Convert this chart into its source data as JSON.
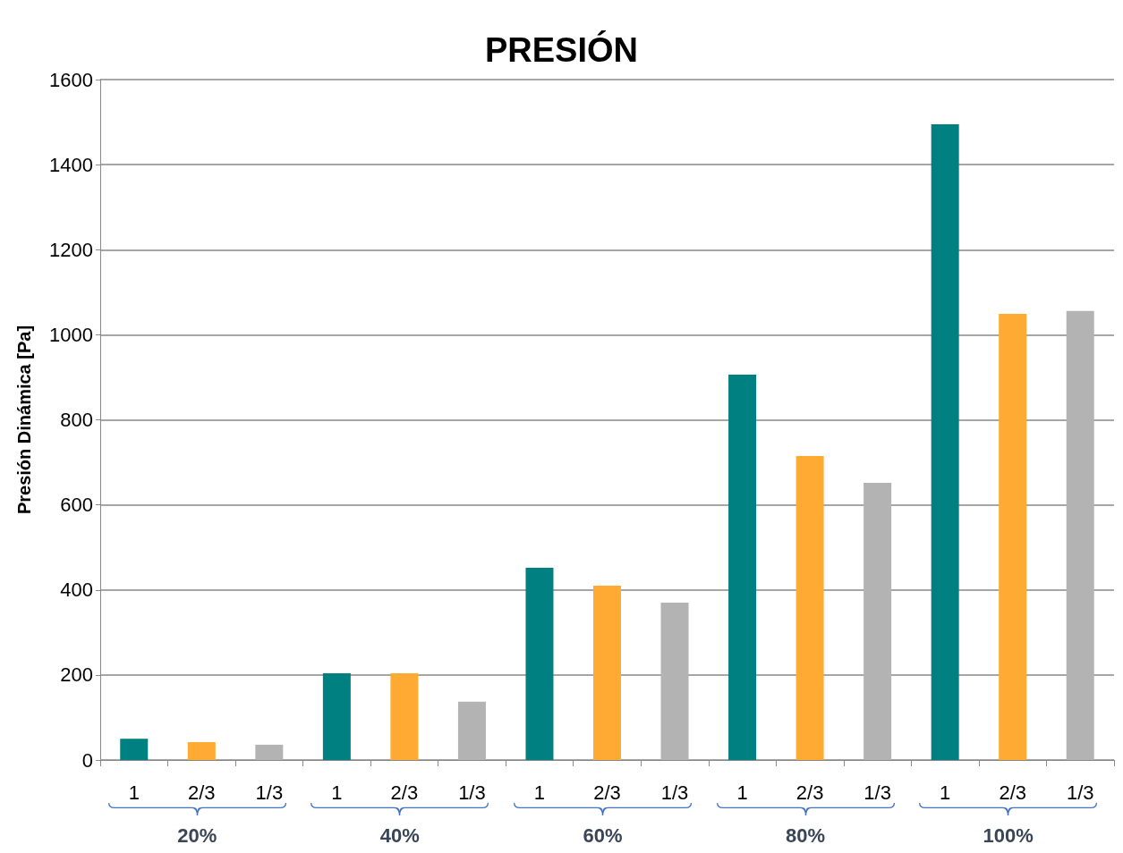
{
  "chart_data": {
    "type": "bar",
    "title": "PRESIÓN",
    "ylabel": "Presión Dinámica [Pa]",
    "categories": [
      "1",
      "2/3",
      "1/3",
      "1",
      "2/3",
      "1/3",
      "1",
      "2/3",
      "1/3",
      "1",
      "2/3",
      "1/3",
      "1",
      "2/3",
      "1/3"
    ],
    "values": [
      50,
      42,
      36,
      204,
      204,
      137,
      452,
      410,
      370,
      906,
      715,
      652,
      1495,
      1049,
      1056
    ],
    "colors": [
      "#008080",
      "#ffaa33",
      "#b3b3b3",
      "#008080",
      "#ffaa33",
      "#b3b3b3",
      "#008080",
      "#ffaa33",
      "#b3b3b3",
      "#008080",
      "#ffaa33",
      "#b3b3b3",
      "#008080",
      "#ffaa33",
      "#b3b3b3"
    ],
    "annotations": [
      "20%",
      "40%",
      "60%",
      "80%",
      "100%"
    ],
    "ylim": [
      0,
      1600
    ],
    "yticks": [
      0,
      200,
      400,
      600,
      800,
      1000,
      1200,
      1400,
      1600
    ],
    "grid": "y"
  }
}
